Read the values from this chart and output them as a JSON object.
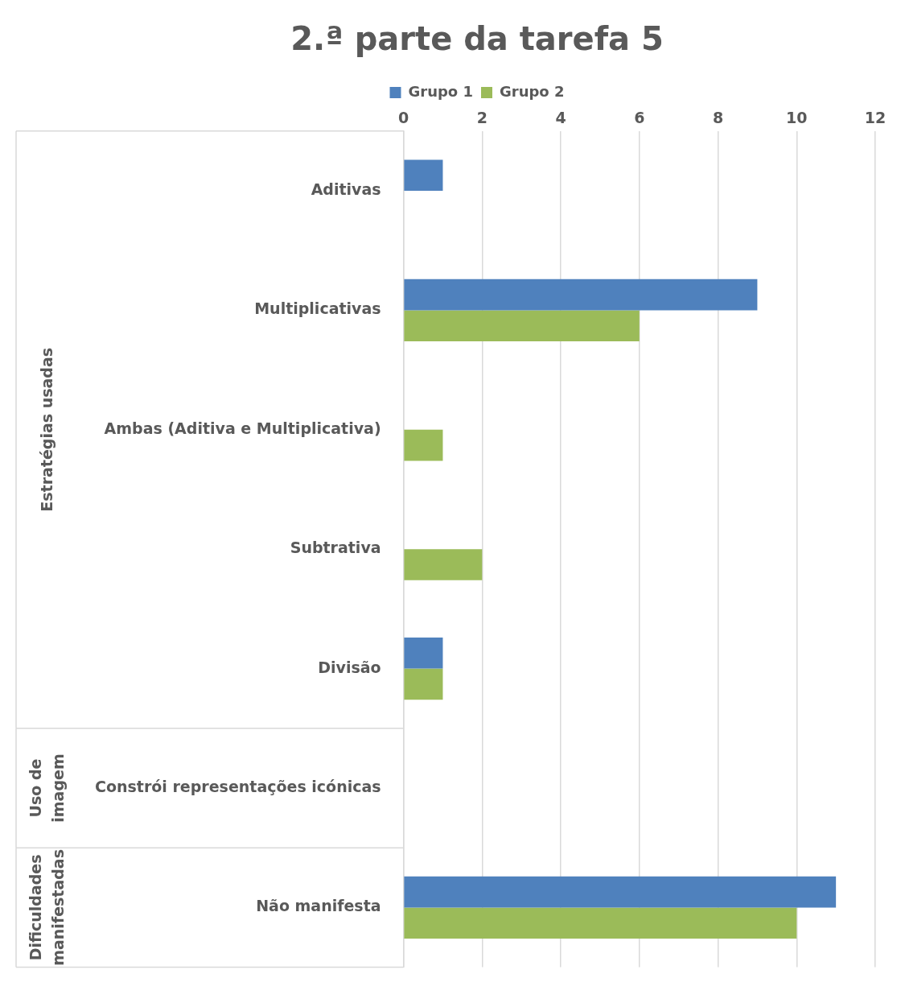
{
  "chart_data": {
    "type": "bar",
    "orientation": "horizontal",
    "title": "2.ª parte da tarefa 5",
    "categories": [
      "Aditivas",
      "Multiplicativas",
      "Ambas (Aditiva e Multiplicativa)",
      "Subtrativa",
      "Divisão",
      "Constrói representações icónicas",
      "Não manifesta"
    ],
    "series": [
      {
        "name": "Grupo 1",
        "color": "#4f81bd",
        "values": [
          1,
          9,
          0,
          0,
          1,
          0,
          11
        ]
      },
      {
        "name": "Grupo 2",
        "color": "#9bbb59",
        "values": [
          0,
          6,
          1,
          2,
          1,
          0,
          10
        ]
      }
    ],
    "xlim": [
      0,
      12
    ],
    "xticks": [
      0,
      2,
      4,
      6,
      8,
      10,
      12
    ],
    "grid": "x",
    "legend": "top",
    "annotations": [
      "Estratégias usadas",
      "Uso de imagem",
      "Dificuldades manifestadas"
    ]
  }
}
